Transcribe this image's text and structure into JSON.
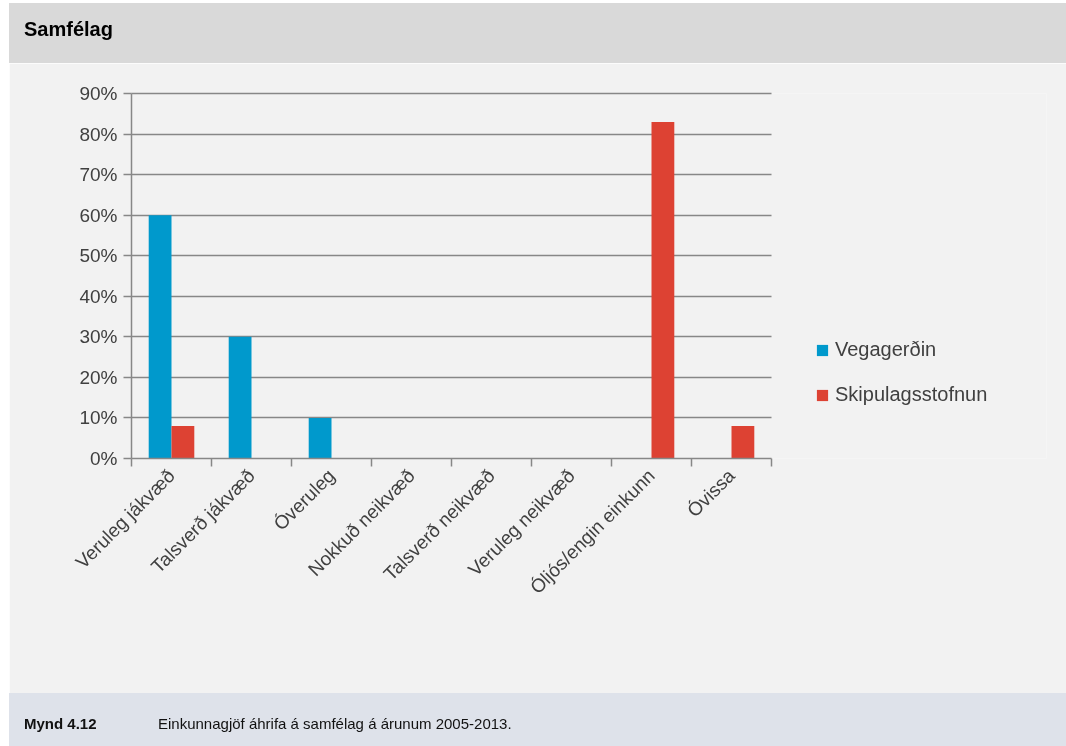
{
  "chart_data": {
    "type": "bar",
    "title": "Samfélag",
    "categories": [
      "Veruleg jákvæð",
      "Talsverð jákvæð",
      "Óveruleg",
      "Nokkuð neikvæð",
      "Talsverð neikvæð",
      "Veruleg neikvæð",
      "Óljós/engin einkunn",
      "Óvissa"
    ],
    "series": [
      {
        "name": "Vegagerðin",
        "color": "#0099cc",
        "values": [
          60,
          30,
          10,
          0,
          0,
          0,
          0,
          0
        ]
      },
      {
        "name": "Skipulagsstofnun",
        "color": "#dd4233",
        "values": [
          8,
          0,
          0,
          0,
          0,
          0,
          83,
          8
        ]
      }
    ],
    "ylim": [
      0,
      90
    ],
    "yticks": [
      {
        "value": 0,
        "label": "0%"
      },
      {
        "value": 10,
        "label": "10%"
      },
      {
        "value": 20,
        "label": "20%"
      },
      {
        "value": 30,
        "label": "30%"
      },
      {
        "value": 40,
        "label": "40%"
      },
      {
        "value": 50,
        "label": "50%"
      },
      {
        "value": 60,
        "label": "60%"
      },
      {
        "value": 70,
        "label": "70%"
      },
      {
        "value": 80,
        "label": "80%"
      },
      {
        "value": 90,
        "label": "90%"
      }
    ],
    "grid": "y",
    "legend": "right",
    "annotations": [
      "Mynd 4.12",
      "Einkunnagjöf áhrifa á samfélag á árunum 2005-2013."
    ]
  }
}
